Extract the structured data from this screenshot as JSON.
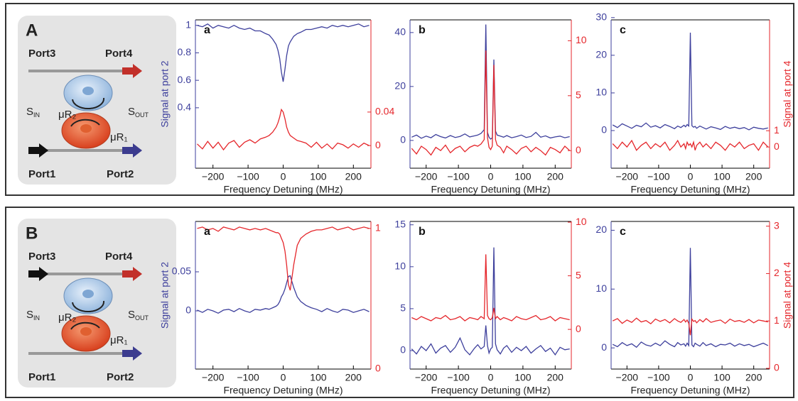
{
  "chart_data": [
    {
      "type": "line",
      "panel_label": "a",
      "xlabel": "Frequency Detuning (MHz)",
      "ylabel": "Signal at port 2",
      "x": [
        -245,
        -230,
        -215,
        -200,
        -185,
        -170,
        -155,
        -140,
        -125,
        -110,
        -95,
        -80,
        -65,
        -50,
        -40,
        -30,
        -20,
        -15,
        -10,
        -5,
        0,
        5,
        10,
        15,
        20,
        30,
        40,
        50,
        65,
        80,
        95,
        110,
        125,
        140,
        155,
        170,
        185,
        200,
        215,
        230,
        245
      ],
      "series": [
        {
          "color": "#3d3f9c",
          "values": [
            1.0,
            0.99,
            1.01,
            0.98,
            1.0,
            0.99,
            0.98,
            1.0,
            0.98,
            0.97,
            0.98,
            0.96,
            0.96,
            0.94,
            0.93,
            0.9,
            0.86,
            0.82,
            0.76,
            0.66,
            0.59,
            0.68,
            0.78,
            0.85,
            0.88,
            0.92,
            0.94,
            0.95,
            0.97,
            0.97,
            0.98,
            0.99,
            0.98,
            1.0,
            0.99,
            1.0,
            0.99,
            1.0,
            1.01,
            0.99,
            1.0
          ]
        },
        {
          "color": "#e5262b",
          "axis": "y2",
          "values": [
            0.002,
            -0.004,
            0.005,
            -0.003,
            0.004,
            -0.005,
            0.003,
            0.006,
            -0.002,
            0.004,
            0.007,
            0.003,
            0.008,
            0.01,
            0.012,
            0.016,
            0.022,
            0.027,
            0.034,
            0.043,
            0.04,
            0.032,
            0.022,
            0.016,
            0.012,
            0.009,
            0.006,
            0.005,
            0.003,
            -0.002,
            0.004,
            -0.003,
            0.002,
            -0.004,
            0.003,
            0.001,
            -0.003,
            0.002,
            -0.002,
            0.003,
            0
          ]
        }
      ],
      "xlim": [
        -250,
        250
      ],
      "xticks": [
        {
          "value": -200,
          "label": "−200"
        },
        {
          "value": -100,
          "label": "−100"
        },
        0,
        100,
        200
      ],
      "ylim": [
        -0.04,
        1.04
      ],
      "yticks": [
        0.4,
        0.6,
        0.8,
        1
      ],
      "y2lim": [
        -0.027,
        0.15
      ],
      "y2ticks": [
        0,
        0.04
      ]
    },
    {
      "type": "line",
      "panel_label": "b",
      "xlabel": "Frequency Detuning (MHz)",
      "x": [
        -245,
        -230,
        -215,
        -200,
        -185,
        -170,
        -155,
        -140,
        -125,
        -110,
        -95,
        -80,
        -65,
        -50,
        -40,
        -30,
        -20,
        -15,
        -10,
        -5,
        0,
        5,
        10,
        15,
        20,
        30,
        40,
        50,
        65,
        80,
        95,
        110,
        125,
        140,
        155,
        170,
        185,
        200,
        215,
        230,
        245
      ],
      "series": [
        {
          "color": "#3d3f9c",
          "values": [
            1.2,
            2.0,
            0.8,
            1.6,
            1.0,
            2.2,
            1.4,
            0.9,
            1.8,
            1.1,
            1.5,
            2.4,
            1.3,
            1.7,
            2.0,
            2.6,
            4.0,
            43,
            3.0,
            1.2,
            0.5,
            1.0,
            30,
            3.5,
            2.0,
            1.6,
            1.2,
            1.8,
            1.0,
            1.4,
            2.0,
            1.1,
            1.5,
            3.0,
            1.2,
            1.7,
            0.9,
            1.3,
            1.6,
            1.0,
            1.4
          ]
        },
        {
          "color": "#e5262b",
          "axis": "y2",
          "values": [
            0.2,
            -0.3,
            0.4,
            0.1,
            -0.4,
            0.3,
            0,
            0.5,
            -0.2,
            0.2,
            0.4,
            -0.1,
            0.3,
            0.5,
            0.4,
            0.6,
            1.0,
            9.1,
            1.2,
            0.3,
            0.1,
            0.4,
            7.8,
            1.0,
            0.5,
            0.3,
            -0.2,
            0.4,
            0.1,
            -0.3,
            0.2,
            0.4,
            -0.1,
            0.3,
            0,
            -0.4,
            0.3,
            0.1,
            -0.2,
            0.4,
            0
          ]
        }
      ],
      "xlim": [
        -250,
        250
      ],
      "xticks": [
        {
          "value": -200,
          "label": "−200"
        },
        {
          "value": -100,
          "label": "−100"
        },
        0,
        100,
        200
      ],
      "ylim": [
        -10.3,
        44.7
      ],
      "yticks": [
        0,
        20,
        40
      ],
      "y2lim": [
        -1.6,
        11.9
      ],
      "y2ticks": [
        0,
        5,
        10
      ]
    },
    {
      "type": "line",
      "panel_label": "c",
      "xlabel": "Frequency Detuning (MHz)",
      "y2label": "Signal at port 4",
      "x": [
        -245,
        -230,
        -215,
        -200,
        -185,
        -170,
        -155,
        -140,
        -125,
        -110,
        -95,
        -80,
        -65,
        -50,
        -40,
        -30,
        -20,
        -15,
        -10,
        -5,
        0,
        5,
        10,
        15,
        20,
        30,
        40,
        50,
        65,
        80,
        95,
        110,
        125,
        140,
        155,
        170,
        185,
        200,
        215,
        230,
        245
      ],
      "series": [
        {
          "color": "#3d3f9c",
          "values": [
            1.5,
            0.8,
            1.8,
            1.2,
            0.6,
            1.4,
            1.0,
            2.0,
            0.9,
            1.3,
            0.7,
            1.6,
            1.1,
            0.5,
            1.2,
            0.8,
            1.4,
            1.0,
            1.6,
            1.2,
            26,
            1.3,
            0.9,
            1.1,
            0.6,
            1.2,
            0.8,
            0.4,
            1.0,
            0.7,
            0.3,
            1.1,
            0.6,
            0.9,
            0.5,
            0.8,
            0.2,
            0.9,
            0.6,
            0.4,
            0.7
          ]
        },
        {
          "color": "#e5262b",
          "axis": "y2",
          "values": [
            0.2,
            -0.1,
            0.3,
            0,
            0.4,
            -0.2,
            0.1,
            0.3,
            -0.1,
            0.2,
            0,
            0.3,
            -0.2,
            0.1,
            0.4,
            0,
            0.2,
            -0.1,
            0.3,
            0.1,
            0.2,
            0,
            0.3,
            -0.2,
            0.1,
            0.3,
            0,
            0.2,
            -0.1,
            0.3,
            0.1,
            -0.2,
            0.2,
            0,
            0.3,
            -0.1,
            0.1,
            0.2,
            -0.2,
            0.3,
            0
          ]
        }
      ],
      "xlim": [
        -250,
        250
      ],
      "xticks": [
        {
          "value": -200,
          "label": "−200"
        },
        {
          "value": -100,
          "label": "−100"
        },
        0,
        100,
        200
      ],
      "ylim": [
        -10,
        29.4
      ],
      "yticks": [
        0,
        10,
        20,
        30
      ],
      "y2lim": [
        -1.3,
        7.8
      ],
      "y2ticks": [
        0,
        1
      ]
    },
    {
      "type": "line",
      "panel_label": "a",
      "xlabel": "Frequency Detuning (MHz)",
      "ylabel": "Signal at port 2",
      "x": [
        -245,
        -230,
        -215,
        -200,
        -185,
        -170,
        -155,
        -140,
        -125,
        -110,
        -95,
        -80,
        -65,
        -50,
        -40,
        -30,
        -20,
        -15,
        -10,
        -5,
        0,
        5,
        10,
        15,
        20,
        30,
        40,
        50,
        65,
        80,
        95,
        110,
        125,
        140,
        155,
        170,
        185,
        200,
        215,
        230,
        245
      ],
      "series": [
        {
          "color": "#3d3f9c",
          "values": [
            0.001,
            -0.002,
            0.002,
            0,
            -0.003,
            0.001,
            0.002,
            -0.001,
            0.003,
            0,
            -0.002,
            0.002,
            0.001,
            0.003,
            0.002,
            0.004,
            0.006,
            0.008,
            0.012,
            0.018,
            0.022,
            0.028,
            0.036,
            0.044,
            0.045,
            0.03,
            0.018,
            0.012,
            0.007,
            0.004,
            0.002,
            -0.001,
            0.003,
            0,
            -0.002,
            0.002,
            0.001,
            -0.002,
            0,
            0.002,
            -0.001
          ]
        },
        {
          "color": "#e5262b",
          "axis": "y2",
          "values": [
            1.0,
            1.01,
            0.99,
            1.0,
            0.98,
            1.01,
            1.0,
            0.99,
            1.01,
            1.0,
            0.99,
            1.0,
            0.99,
            1.0,
            0.99,
            0.98,
            0.97,
            0.97,
            0.96,
            0.93,
            0.9,
            0.84,
            0.74,
            0.6,
            0.56,
            0.74,
            0.88,
            0.93,
            0.96,
            0.98,
            0.99,
            0.99,
            1.0,
            1.01,
            0.99,
            1.0,
            1.01,
            0.99,
            1.0,
            1.01,
            1.0
          ]
        }
      ],
      "xlim": [
        -250,
        250
      ],
      "xticks": [
        {
          "value": -200,
          "label": "−200"
        },
        {
          "value": -100,
          "label": "−100"
        },
        0,
        100,
        200
      ],
      "ylim": [
        -0.0745,
        0.1145
      ],
      "yticks": [
        0,
        0.05
      ],
      "y2lim": [
        0,
        1.05
      ],
      "y2ticks": [
        0,
        1
      ]
    },
    {
      "type": "line",
      "panel_label": "b",
      "xlabel": "Frequency Detuning (MHz)",
      "x": [
        -245,
        -230,
        -215,
        -200,
        -185,
        -170,
        -155,
        -140,
        -125,
        -110,
        -95,
        -80,
        -65,
        -50,
        -40,
        -30,
        -20,
        -15,
        -10,
        -5,
        0,
        5,
        10,
        15,
        20,
        30,
        40,
        50,
        65,
        80,
        95,
        110,
        125,
        140,
        155,
        170,
        185,
        200,
        215,
        230,
        245
      ],
      "series": [
        {
          "color": "#3d3f9c",
          "values": [
            0.2,
            -0.4,
            0.5,
            0,
            0.8,
            -0.3,
            0.3,
            0.6,
            -0.2,
            0.4,
            1.5,
            0.1,
            -0.5,
            0.3,
            0.7,
            0.2,
            0.5,
            3.0,
            0.6,
            -0.3,
            0.2,
            0.4,
            12.3,
            0.8,
            0.1,
            -0.4,
            0.3,
            0.6,
            -0.2,
            0.4,
            0,
            0.5,
            -0.3,
            0.2,
            0.6,
            -0.1,
            0.3,
            -0.5,
            0.4,
            0.1,
            0.2
          ]
        },
        {
          "color": "#e5262b",
          "axis": "y2",
          "values": [
            1.1,
            0.9,
            1.2,
            1.0,
            0.8,
            1.1,
            1.0,
            1.3,
            0.9,
            1.0,
            1.2,
            0.8,
            1.1,
            1.0,
            0.9,
            1.2,
            1.0,
            7.0,
            1.3,
            1.0,
            0.9,
            1.1,
            2.0,
            1.0,
            1.2,
            0.9,
            1.1,
            1.0,
            0.8,
            1.2,
            1.0,
            0.9,
            1.1,
            1.3,
            0.9,
            1.0,
            1.2,
            0.8,
            1.1,
            1.0,
            0.9
          ]
        }
      ],
      "xlim": [
        -250,
        250
      ],
      "xticks": [
        {
          "value": -200,
          "label": "−200"
        },
        {
          "value": -100,
          "label": "−100"
        },
        0,
        100,
        200
      ],
      "ylim": [
        -2.2,
        15.4
      ],
      "yticks": [
        0,
        5,
        10,
        15
      ],
      "y2lim": [
        -3.7,
        10.07
      ],
      "y2ticks": [
        0,
        5,
        10
      ]
    },
    {
      "type": "line",
      "panel_label": "c",
      "xlabel": "Frequency Detuning (MHz)",
      "y2label": "Signal at port 4",
      "x": [
        -245,
        -230,
        -215,
        -200,
        -185,
        -170,
        -155,
        -140,
        -125,
        -110,
        -95,
        -80,
        -65,
        -50,
        -40,
        -30,
        -20,
        -15,
        -10,
        -5,
        0,
        5,
        10,
        15,
        20,
        30,
        40,
        50,
        65,
        80,
        95,
        110,
        125,
        140,
        155,
        170,
        185,
        200,
        215,
        230,
        245
      ],
      "series": [
        {
          "color": "#3d3f9c",
          "values": [
            0.6,
            0.2,
            0.9,
            0.4,
            0.7,
            0.1,
            1.0,
            0.5,
            0.3,
            0.8,
            0.4,
            1.2,
            0.6,
            0.2,
            0.9,
            0.5,
            0.7,
            0.3,
            0.8,
            0.4,
            17,
            0.5,
            0.2,
            0.8,
            0.6,
            0.3,
            0.9,
            0.4,
            0.7,
            0.2,
            0.6,
            0.5,
            0.8,
            0.3,
            0.7,
            0.4,
            0.6,
            0.2,
            0.5,
            0.8,
            0.4
          ]
        },
        {
          "color": "#e5262b",
          "axis": "y2",
          "values": [
            1.0,
            1.05,
            0.95,
            1.02,
            0.97,
            1.06,
            0.98,
            1.01,
            0.94,
            1.04,
            0.99,
            1.03,
            0.96,
            1.05,
            1.0,
            0.97,
            1.03,
            0.98,
            1.02,
            0.95,
            0.7,
            1.04,
            0.99,
            1.01,
            0.96,
            1.03,
            0.98,
            1.05,
            0.97,
            1.0,
            1.02,
            0.95,
            1.04,
            0.99,
            1.01,
            0.97,
            1.03,
            0.96,
            1.02,
            1.0,
            0.98
          ]
        }
      ],
      "xlim": [
        -250,
        250
      ],
      "xticks": [
        {
          "value": -200,
          "label": "−200"
        },
        {
          "value": -100,
          "label": "−100"
        },
        0,
        100,
        200
      ],
      "ylim": [
        -3.6,
        21.5
      ],
      "yticks": [
        0,
        10,
        20
      ],
      "y2lim": [
        -0.015,
        3.1
      ],
      "y2ticks": [
        0,
        1,
        2,
        3
      ]
    }
  ],
  "schematics": [
    {
      "letter": "A",
      "port3": "Port3",
      "port4": "Port4",
      "port1": "Port1",
      "port2": "Port2",
      "ring2": "μR₂",
      "ring1": "μR₁",
      "s_in": {
        "main": "S",
        "sub": "IN"
      },
      "s_out": {
        "main": "S",
        "sub": "OUT"
      }
    },
    {
      "letter": "B",
      "port3": "Port3",
      "port4": "Port4",
      "port1": "Port1",
      "port2": "Port2",
      "ring2": "μR₂",
      "ring1": "μR₁",
      "s_in": {
        "main": "S",
        "sub": "IN"
      },
      "s_out": {
        "main": "S",
        "sub": "OUT"
      }
    }
  ]
}
